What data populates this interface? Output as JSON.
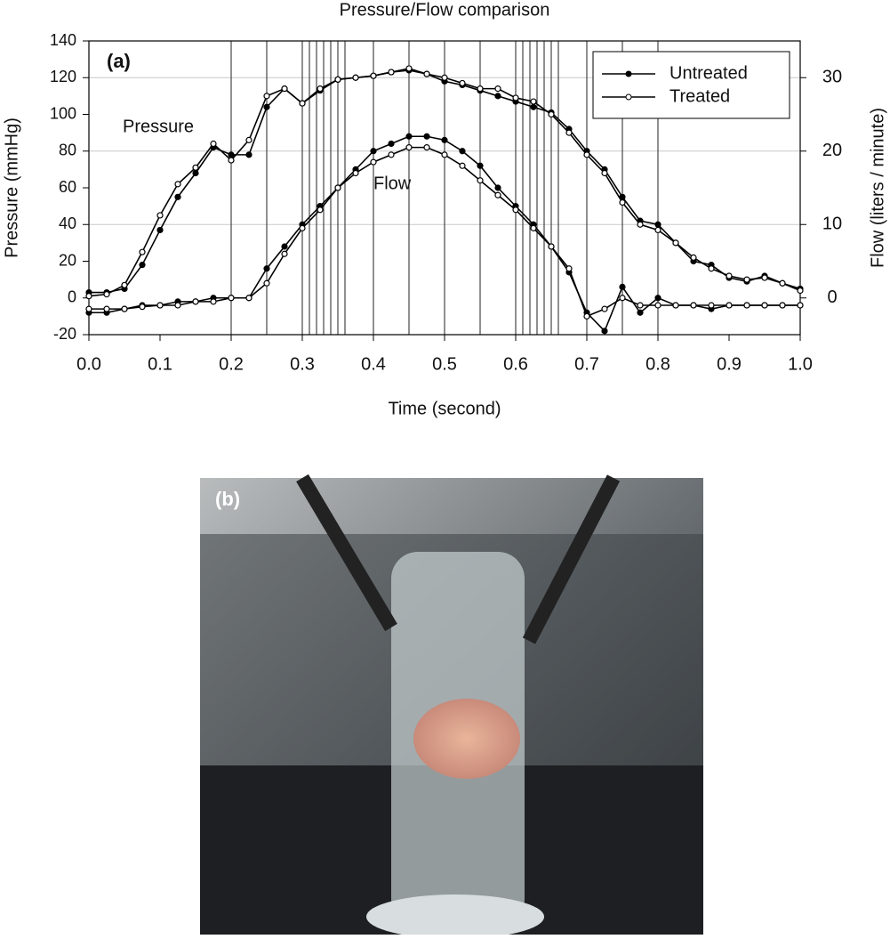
{
  "chart_data": {
    "type": "line",
    "title": "Pressure/Flow comparison",
    "panel_label": "(a)",
    "xlabel": "Time (second)",
    "ylabel": "Pressure (mmHg)",
    "y2label": "Flow (liters / minute)",
    "annotations": [
      "Pressure",
      "Flow"
    ],
    "x": [
      0,
      0.025,
      0.05,
      0.075,
      0.1,
      0.125,
      0.15,
      0.175,
      0.2,
      0.225,
      0.25,
      0.275,
      0.3,
      0.325,
      0.35,
      0.375,
      0.4,
      0.425,
      0.45,
      0.475,
      0.5,
      0.525,
      0.55,
      0.575,
      0.6,
      0.625,
      0.65,
      0.675,
      0.7,
      0.725,
      0.75,
      0.775,
      0.8,
      0.825,
      0.85,
      0.875,
      0.9,
      0.925,
      0.95,
      0.975,
      1.0
    ],
    "xlim": [
      0,
      1
    ],
    "xticks": [
      {
        "value": 0,
        "label": "0.0"
      },
      0.1,
      0.2,
      0.3,
      0.4,
      0.5,
      0.6,
      0.7,
      0.8,
      0.9,
      {
        "value": 1,
        "label": "1.0"
      }
    ],
    "ylim": [
      -20,
      140
    ],
    "yticks": [
      -20,
      0,
      20,
      40,
      60,
      80,
      100,
      120,
      140
    ],
    "y2lim": [
      -5,
      35
    ],
    "y2ticks": [
      0,
      10,
      20,
      30
    ],
    "grid": true,
    "vlines": [
      0.2,
      0.25,
      0.3,
      0.31,
      0.32,
      0.33,
      0.34,
      0.35,
      0.36,
      0.4,
      0.45,
      0.5,
      0.55,
      0.6,
      0.61,
      0.62,
      0.63,
      0.64,
      0.65,
      0.66,
      0.7,
      0.75,
      0.8
    ],
    "legend": "upper right",
    "series": [
      {
        "name": "Untreated",
        "color": "#000000",
        "marker": "filled",
        "values": [
          3,
          3,
          5,
          18,
          37,
          55,
          68,
          82,
          78,
          78,
          104,
          114,
          106,
          113,
          119,
          120,
          121,
          123,
          124,
          122,
          118,
          116,
          113,
          110,
          107,
          104,
          101,
          92,
          80,
          70,
          55,
          42,
          40,
          30,
          20,
          18,
          11,
          9,
          12,
          8,
          5
        ],
        "flow_values": [
          -2,
          -2,
          -1.5,
          -1,
          -1,
          -0.5,
          -0.5,
          0,
          0,
          0,
          4,
          7,
          10,
          12.5,
          15,
          17.5,
          20,
          21,
          22,
          22,
          21.5,
          20,
          18,
          15,
          12.5,
          10,
          7,
          3.5,
          -2,
          -4.5,
          1.5,
          -2,
          0,
          -1,
          -1,
          -1.5,
          -1,
          -1,
          -1,
          -1,
          -1
        ]
      },
      {
        "name": "Treated",
        "color": "#000000",
        "marker": "open",
        "values": [
          1,
          2,
          7,
          25,
          45,
          62,
          71,
          84,
          75,
          86,
          110,
          114,
          106,
          114,
          119,
          120,
          121,
          123,
          125,
          122,
          120,
          117,
          114,
          114,
          109,
          107,
          100,
          90,
          78,
          68,
          52,
          40,
          37,
          30,
          22,
          16,
          12,
          10,
          11,
          8,
          4
        ],
        "flow_values": [
          -1.5,
          -1.5,
          -1.5,
          -1.2,
          -1,
          -1,
          -0.5,
          -0.5,
          0,
          0,
          2,
          6,
          9.5,
          12,
          15,
          17,
          18.5,
          19.5,
          20.5,
          20.5,
          19.5,
          18,
          16,
          14,
          12,
          9.5,
          7,
          4,
          -2.5,
          -1.5,
          0,
          -1,
          -1,
          -1,
          -1,
          -1,
          -1,
          -1,
          -1,
          -1,
          -1
        ]
      }
    ]
  },
  "photo": {
    "label": "(b)"
  }
}
